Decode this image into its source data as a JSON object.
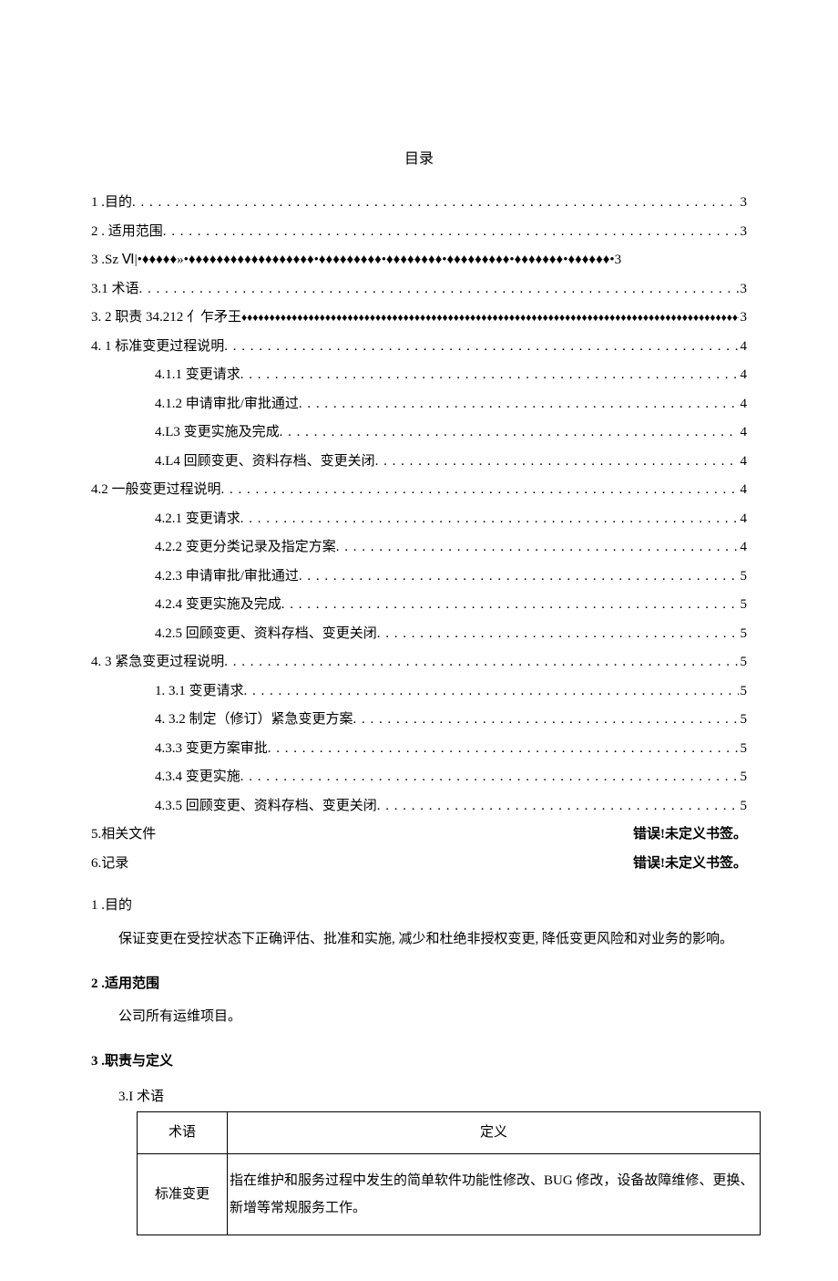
{
  "title": "目录",
  "toc": [
    {
      "label": "1  .目的",
      "leader": "dots",
      "page": "3",
      "indent": "indent1"
    },
    {
      "label": "2  . 适用范围",
      "leader": "dots",
      "page": "3",
      "indent": "indent1"
    },
    {
      "label": "3  .Sz Ⅵ|•♦♦♦♦♦»•♦♦♦♦♦♦♦♦♦♦♦♦♦♦♦♦♦♦•♦♦♦♦♦♦♦♦♦•♦♦♦♦♦♦♦♦•♦♦♦♦♦♦♦♦♦•♦♦♦♦♦♦♦•♦♦♦♦♦♦•3",
      "leader": "none",
      "page": "",
      "indent": "indent1"
    },
    {
      "label": "3.1 术语",
      "leader": "dots",
      "page": "3",
      "indent": "indent1"
    },
    {
      "label": "3.   2 职责 34.212 亻乍矛王",
      "leader": "diamonds",
      "page": "3",
      "indent": "indent1"
    },
    {
      "label": "4.   1 标准变更过程说明",
      "leader": "dots",
      "page": "4",
      "indent": "indent1"
    },
    {
      "label": "4.1.1 变更请求",
      "leader": "dots",
      "page": "4",
      "indent": "indent3"
    },
    {
      "label": "4.1.2 申请审批/审批通过",
      "leader": "dots",
      "page": "4",
      "indent": "indent3"
    },
    {
      "label": "4.L3 变更实施及完成",
      "leader": "dots",
      "page": "4",
      "indent": "indent3"
    },
    {
      "label": "4.L4 回顾变更、资料存档、变更关闭",
      "leader": "dots",
      "page": "4",
      "indent": "indent3"
    },
    {
      "label": "4.2 一般变更过程说明",
      "leader": "dots",
      "page": "4",
      "indent": "indent1"
    },
    {
      "label": "4.2.1 变更请求",
      "leader": "dots",
      "page": "4",
      "indent": "indent3"
    },
    {
      "label": "4.2.2 变更分类记录及指定方案",
      "leader": "dots",
      "page": "4",
      "indent": "indent3"
    },
    {
      "label": "4.2.3 申请审批/审批通过",
      "leader": "dots",
      "page": "5",
      "indent": "indent3"
    },
    {
      "label": "4.2.4 变更实施及完成",
      "leader": "dots",
      "page": "5",
      "indent": "indent3"
    },
    {
      "label": "4.2.5 回顾变更、资料存档、变更关闭",
      "leader": "dots",
      "page": "5",
      "indent": "indent3"
    },
    {
      "label": "4.   3 紧急变更过程说明",
      "leader": "dots",
      "page": "5",
      "indent": "indent1"
    },
    {
      "label": "1.   3.1 变更请求",
      "leader": "dots",
      "page": "5",
      "indent": "indent3"
    },
    {
      "label": "4.   3.2 制定（修订）紧急变更方案",
      "leader": "dots",
      "page": "5",
      "indent": "indent3"
    },
    {
      "label": "4.3.3 变更方案审批",
      "leader": "dots",
      "page": "5",
      "indent": "indent3"
    },
    {
      "label": "4.3.4 变更实施",
      "leader": "dots",
      "page": "5",
      "indent": "indent3"
    },
    {
      "label": "4.3.5 回顾变更、资料存档、变更关闭",
      "leader": "dots",
      "page": "5",
      "indent": "indent3"
    }
  ],
  "error_lines": [
    {
      "label": "5.相关文件",
      "msg": "错误!未定义书签。"
    },
    {
      "label": "6.记录",
      "msg": "错误!未定义书签。"
    }
  ],
  "sections": {
    "s1_heading": "1  .目的",
    "s1_body": "保证变更在受控状态下正确评估、批准和实施, 减少和杜绝非授权变更, 降低变更风险和对业务的影响。",
    "s2_heading": "2  .适用范围",
    "s2_body": "公司所有运维项目。",
    "s3_heading": "3  .职责与定义",
    "s3_sub": "3.I 术语"
  },
  "table": {
    "headers": [
      "术语",
      "定义"
    ],
    "rows": [
      {
        "term": "标准变更",
        "def": "指在维护和服务过程中发生的简单软件功能性修改、BUG 修改，设备故障维修、更换、新增等常规服务工作。"
      }
    ]
  }
}
